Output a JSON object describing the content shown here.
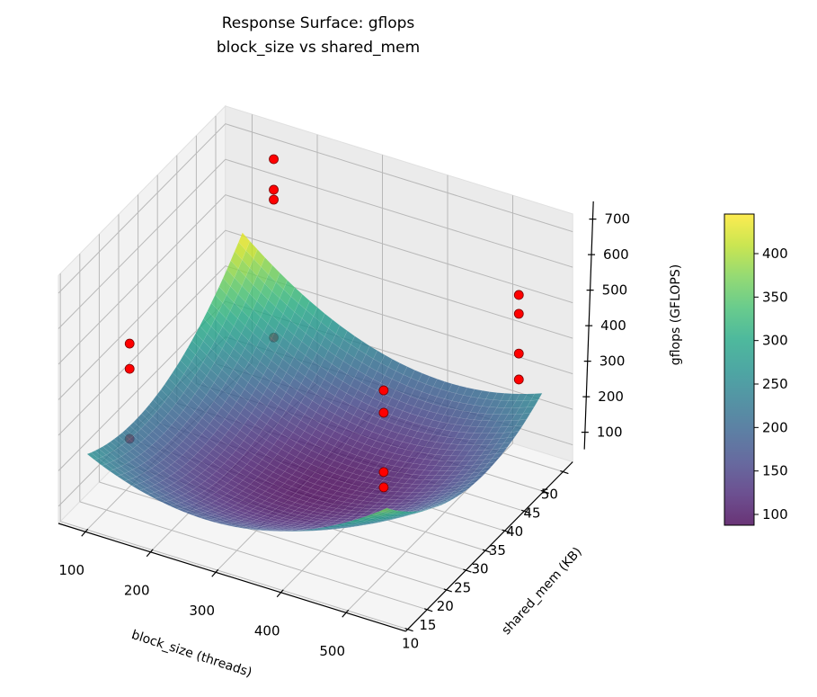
{
  "chart_data": {
    "type": "surface3d",
    "title": "Response Surface: gflops",
    "subtitle": "block_size vs shared_mem",
    "xlabel": "block_size (threads)",
    "ylabel": "shared_mem (KB)",
    "zlabel": "gflops (GFLOPS)",
    "xlim": [
      59,
      592
    ],
    "ylim": [
      9.5,
      52.5
    ],
    "zlim": [
      52,
      750
    ],
    "xticks": [
      100,
      200,
      300,
      400,
      500
    ],
    "yticks": [
      10,
      15,
      20,
      25,
      30,
      35,
      40,
      45,
      50
    ],
    "zticks": [
      100,
      200,
      300,
      400,
      500,
      600,
      700
    ],
    "grid": true,
    "colormap": "viridis",
    "surface": {
      "x_range": [
        100,
        560
      ],
      "y_range": [
        10,
        50
      ],
      "model": "quadratic",
      "coefficients": {
        "intercept": 90,
        "u2": 130,
        "v2": 115,
        "uv": -75,
        "u": -20,
        "v": 15
      },
      "u_center": 330,
      "u_scale": 230,
      "v_center": 30,
      "v_scale": 20,
      "alpha": 0.8
    },
    "colorbar": {
      "range": [
        87.6,
        445.5
      ],
      "ticks": [
        100,
        150,
        200,
        250,
        300,
        350,
        400
      ]
    },
    "points": [
      {
        "block_size": 160,
        "shared_mem": 48,
        "gflops": 708
      },
      {
        "block_size": 160,
        "shared_mem": 48,
        "gflops": 622
      },
      {
        "block_size": 160,
        "shared_mem": 48,
        "gflops": 594
      },
      {
        "block_size": 160,
        "shared_mem": 48,
        "gflops": 206
      },
      {
        "block_size": 64,
        "shared_mem": 27,
        "gflops": 367
      },
      {
        "block_size": 64,
        "shared_mem": 27,
        "gflops": 296
      },
      {
        "block_size": 64,
        "shared_mem": 27,
        "gflops": 99
      },
      {
        "block_size": 436,
        "shared_mem": 30,
        "gflops": 414
      },
      {
        "block_size": 436,
        "shared_mem": 30,
        "gflops": 351
      },
      {
        "block_size": 436,
        "shared_mem": 30,
        "gflops": 184
      },
      {
        "block_size": 436,
        "shared_mem": 30,
        "gflops": 141
      },
      {
        "block_size": 560,
        "shared_mem": 44,
        "gflops": 598
      },
      {
        "block_size": 560,
        "shared_mem": 44,
        "gflops": 545
      },
      {
        "block_size": 560,
        "shared_mem": 44,
        "gflops": 433
      },
      {
        "block_size": 560,
        "shared_mem": 44,
        "gflops": 360
      }
    ],
    "point_color": "#ff0000",
    "point_edge_color": "#7a0000"
  }
}
